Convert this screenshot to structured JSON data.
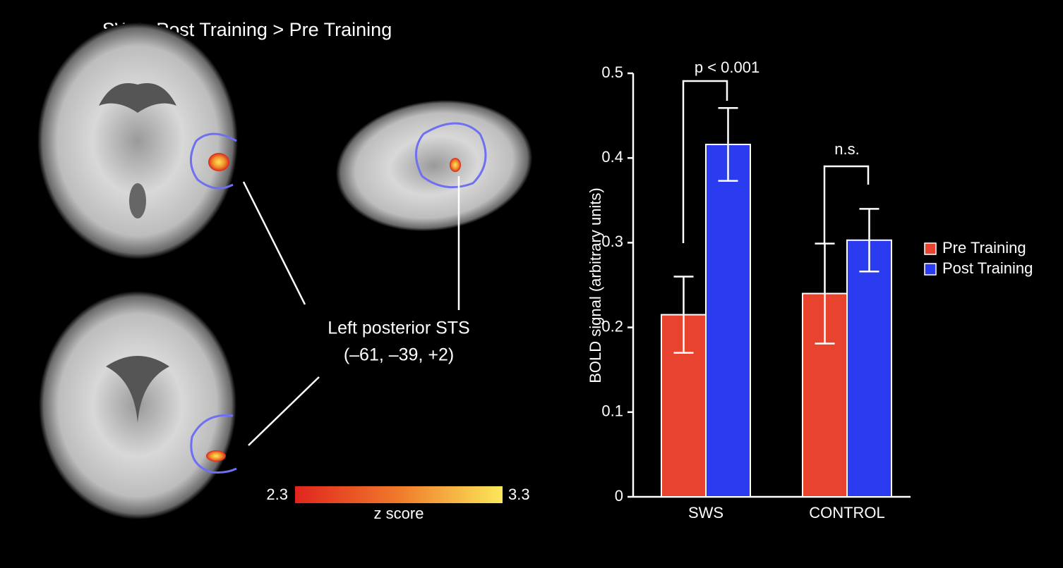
{
  "figure": {
    "title": "SWS: Post Training > Pre Training",
    "region_label": "Left posterior STS",
    "coordinates": "(–61, –39, +2)",
    "colorbar": {
      "min": 2.3,
      "max": 3.3,
      "label": "z score"
    }
  },
  "chart_data": {
    "type": "bar",
    "categories": [
      "SWS",
      "CONTROL"
    ],
    "series": [
      {
        "name": "Pre Training",
        "color": "#e8432e",
        "values": [
          0.215,
          0.24
        ],
        "errors": [
          0.045,
          0.059
        ]
      },
      {
        "name": "Post Training",
        "color": "#2b3bef",
        "values": [
          0.416,
          0.303
        ],
        "errors": [
          0.043,
          0.037
        ]
      }
    ],
    "ylabel": "BOLD signal (arbitrary units)",
    "ylim": [
      0,
      0.5
    ],
    "yticks": [
      0,
      0.1,
      0.2,
      0.3,
      0.4,
      0.5
    ],
    "annotations": [
      "p < 0.001",
      "n.s."
    ],
    "legend": "right"
  }
}
